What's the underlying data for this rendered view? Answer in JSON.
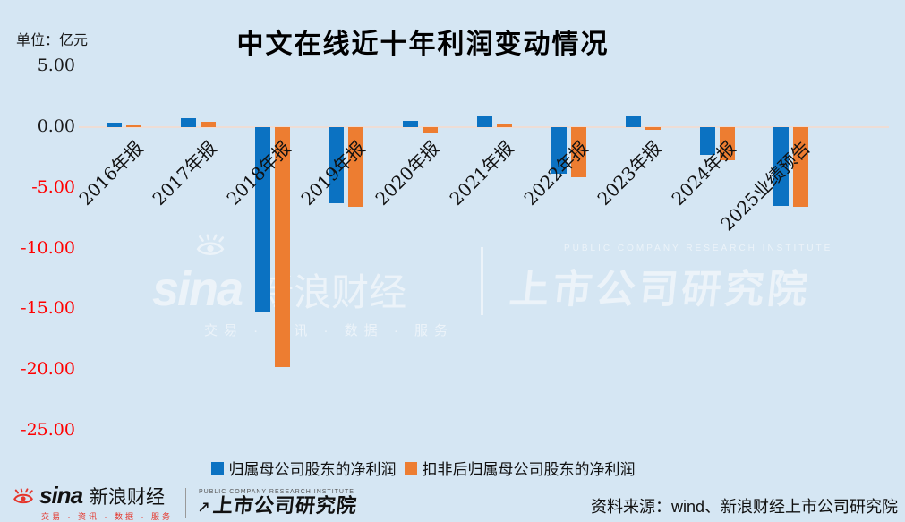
{
  "unit_label": "单位：亿元",
  "title": "中文在线近十年利润变动情况",
  "chart_data": {
    "type": "bar",
    "title": "中文在线近十年利润变动情况",
    "unit": "亿元",
    "categories": [
      "2016年报",
      "2017年报",
      "2018年报",
      "2019年报",
      "2020年报",
      "2021年报",
      "2022年报",
      "2023年报",
      "2024年报",
      "2025业绩预告"
    ],
    "series": [
      {
        "name": "归属母公司股东的净利润",
        "color": "#0B72C2",
        "values": [
          0.38,
          0.72,
          -15.2,
          -6.3,
          0.5,
          0.95,
          -3.8,
          0.85,
          -2.3,
          -6.5
        ]
      },
      {
        "name": "扣非后归属母公司股东的净利润",
        "color": "#ED7D31",
        "values": [
          0.16,
          0.45,
          -19.8,
          -6.6,
          -0.45,
          0.25,
          -4.1,
          -0.22,
          -2.7,
          -6.6
        ]
      }
    ],
    "ylim": [
      -25,
      5
    ],
    "yticks": [
      5,
      0,
      -5,
      -10,
      -15,
      -20,
      -25
    ],
    "tick_color_positive": "#1a1a1a",
    "tick_color_negative": "#ff0000",
    "grid": false,
    "legend_position": "bottom"
  },
  "watermark": {
    "sina": "sina",
    "brand": "新浪财经",
    "tagline": "交易 · 资讯 · 数据 · 服务",
    "institute_en": "PUBLIC COMPANY RESEARCH INSTITUTE",
    "institute": "上市公司研究院"
  },
  "footer": {
    "sina": "sina",
    "brand": "新浪财经",
    "tagline": "交易 · 资讯 · 数据 · 服务",
    "institute_en": "PUBLIC COMPANY RESEARCH INSTITUTE",
    "institute": "上市公司研究院",
    "source": "资料来源：wind、新浪财经上市公司研究院"
  }
}
